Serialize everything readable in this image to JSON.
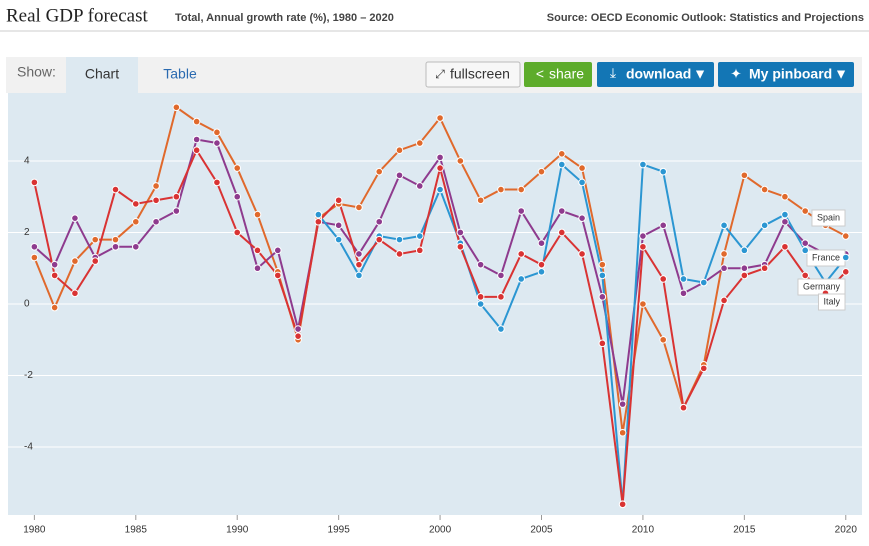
{
  "ui": {
    "show": "Show:",
    "tabs": [
      "Chart",
      "Table"
    ],
    "buttons": [
      "fullscreen",
      "share",
      "download",
      "My pinboard"
    ]
  },
  "chart_data": {
    "type": "line",
    "title": "Real GDP forecast",
    "subtitle": "Total, Annual growth rate (%), 1980 – 2020",
    "source": "Source: OECD Economic Outlook: Statistics and Projections",
    "x": [
      1980,
      1981,
      1982,
      1983,
      1984,
      1985,
      1986,
      1987,
      1988,
      1989,
      1990,
      1991,
      1992,
      1993,
      1994,
      1995,
      1996,
      1997,
      1998,
      1999,
      2000,
      2001,
      2002,
      2003,
      2004,
      2005,
      2006,
      2007,
      2008,
      2009,
      2010,
      2011,
      2012,
      2013,
      2014,
      2015,
      2016,
      2017,
      2018,
      2019,
      2020
    ],
    "xlim": [
      1978.7,
      2020.8
    ],
    "xticks": [
      1980,
      1985,
      1990,
      1995,
      2000,
      2005,
      2010,
      2015,
      2020
    ],
    "ylim": [
      -5.9,
      5.9
    ],
    "yticks": [
      -4,
      -2,
      0,
      2,
      4
    ],
    "grid": true,
    "series": [
      {
        "name": "Spain",
        "color": "#e0692c",
        "values": [
          1.3,
          -0.1,
          1.2,
          1.8,
          1.8,
          2.3,
          3.3,
          5.5,
          5.1,
          4.8,
          3.8,
          2.5,
          0.9,
          -1.0,
          2.4,
          2.8,
          2.7,
          3.7,
          4.3,
          4.5,
          5.2,
          4.0,
          2.9,
          3.2,
          3.2,
          3.7,
          4.2,
          3.8,
          1.1,
          -3.6,
          0.0,
          -1.0,
          -2.9,
          -1.7,
          1.4,
          3.6,
          3.2,
          3.0,
          2.6,
          2.2,
          1.9
        ]
      },
      {
        "name": "France",
        "color": "#8e3b8e",
        "values": [
          1.6,
          1.1,
          2.4,
          1.3,
          1.6,
          1.6,
          2.3,
          2.6,
          4.6,
          4.5,
          3.0,
          1.0,
          1.5,
          -0.7,
          2.3,
          2.2,
          1.4,
          2.3,
          3.6,
          3.3,
          4.1,
          2.0,
          1.1,
          0.8,
          2.6,
          1.7,
          2.6,
          2.4,
          0.2,
          -2.8,
          1.9,
          2.2,
          0.3,
          0.6,
          1.0,
          1.0,
          1.1,
          2.3,
          1.7,
          1.4,
          1.4
        ]
      },
      {
        "name": "Germany",
        "color": "#2b96d2",
        "values": [
          null,
          null,
          null,
          null,
          null,
          null,
          null,
          null,
          null,
          null,
          null,
          null,
          null,
          null,
          2.5,
          1.8,
          0.8,
          1.9,
          1.8,
          1.9,
          3.2,
          1.7,
          0.0,
          -0.7,
          0.7,
          0.9,
          3.9,
          3.4,
          0.8,
          -5.6,
          3.9,
          3.7,
          0.7,
          0.6,
          2.2,
          1.5,
          2.2,
          2.5,
          1.5,
          0.6,
          1.3
        ]
      },
      {
        "name": "Italy",
        "color": "#d93333",
        "values": [
          3.4,
          0.8,
          0.3,
          1.2,
          3.2,
          2.8,
          2.9,
          3.0,
          4.3,
          3.4,
          2.0,
          1.5,
          0.8,
          -0.9,
          2.3,
          2.9,
          1.1,
          1.8,
          1.4,
          1.5,
          3.8,
          1.6,
          0.2,
          0.2,
          1.4,
          1.1,
          2.0,
          1.4,
          -1.1,
          -5.6,
          1.6,
          0.7,
          -2.9,
          -1.8,
          0.1,
          0.8,
          1.0,
          1.6,
          0.8,
          0.3,
          0.9
        ]
      }
    ]
  }
}
